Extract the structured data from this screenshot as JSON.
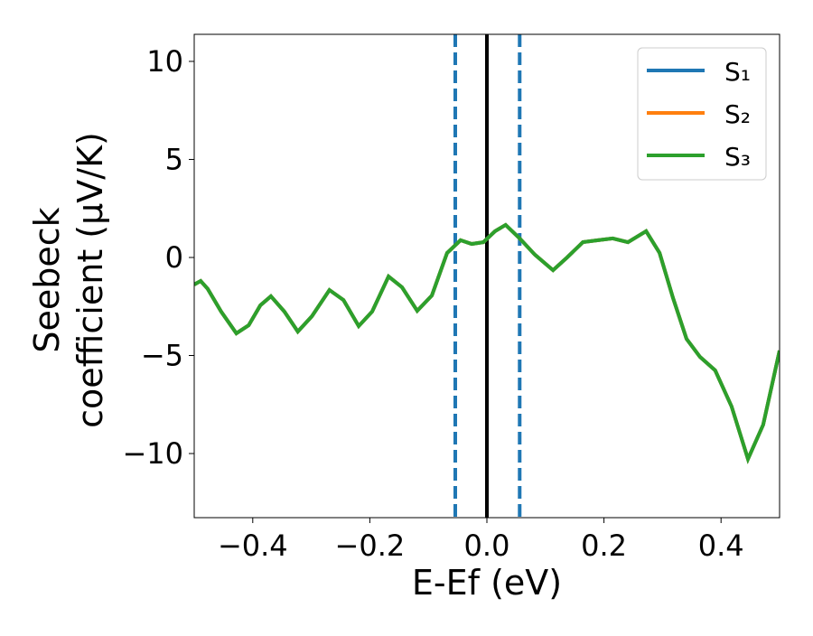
{
  "chart_data": {
    "type": "line",
    "xlabel": "E-Ef (eV)",
    "ylabel": [
      "Seebeck",
      "coefficient  (μV/K)"
    ],
    "x": [
      -0.5,
      -0.489,
      -0.477,
      -0.454,
      -0.428,
      -0.407,
      -0.387,
      -0.369,
      -0.346,
      -0.323,
      -0.299,
      -0.269,
      -0.245,
      -0.219,
      -0.196,
      -0.168,
      -0.145,
      -0.119,
      -0.094,
      -0.068,
      -0.045,
      -0.026,
      -0.006,
      0.014,
      0.032,
      0.056,
      0.082,
      0.113,
      0.137,
      0.164,
      0.19,
      0.215,
      0.241,
      0.272,
      0.295,
      0.318,
      0.341,
      0.364,
      0.39,
      0.418,
      0.446,
      0.472,
      0.5
    ],
    "series": [
      {
        "name": "S₁",
        "color": "#1f77b4",
        "values": [
          -1.38,
          -1.2,
          -1.6,
          -2.76,
          -3.87,
          -3.46,
          -2.44,
          -1.98,
          -2.76,
          -3.78,
          -3.0,
          -1.66,
          -2.17,
          -3.5,
          -2.76,
          -0.97,
          -1.52,
          -2.72,
          -1.94,
          0.23,
          0.88,
          0.69,
          0.78,
          1.34,
          1.66,
          0.97,
          0.14,
          -0.65,
          0,
          0.78,
          0.88,
          0.97,
          0.78,
          1.34,
          0.23,
          -2.07,
          -4.15,
          -5.07,
          -5.76,
          -7.6,
          -10.28,
          -8.53,
          -4.75
        ]
      },
      {
        "name": "S₂",
        "color": "#ff7f0e",
        "values": [
          -1.38,
          -1.2,
          -1.6,
          -2.76,
          -3.87,
          -3.46,
          -2.44,
          -1.98,
          -2.76,
          -3.78,
          -3.0,
          -1.66,
          -2.17,
          -3.5,
          -2.76,
          -0.97,
          -1.52,
          -2.72,
          -1.94,
          0.23,
          0.88,
          0.69,
          0.78,
          1.34,
          1.66,
          0.97,
          0.14,
          -0.65,
          0,
          0.78,
          0.88,
          0.97,
          0.78,
          1.34,
          0.23,
          -2.07,
          -4.15,
          -5.07,
          -5.76,
          -7.6,
          -10.28,
          -8.53,
          -4.75
        ]
      },
      {
        "name": "S₃",
        "color": "#2ca02c",
        "values": [
          -1.38,
          -1.2,
          -1.6,
          -2.76,
          -3.87,
          -3.46,
          -2.44,
          -1.98,
          -2.76,
          -3.78,
          -3.0,
          -1.66,
          -2.17,
          -3.5,
          -2.76,
          -0.97,
          -1.52,
          -2.72,
          -1.94,
          0.23,
          0.88,
          0.69,
          0.78,
          1.34,
          1.66,
          0.97,
          0.14,
          -0.65,
          0,
          0.78,
          0.88,
          0.97,
          0.78,
          1.34,
          0.23,
          -2.07,
          -4.15,
          -5.07,
          -5.76,
          -7.6,
          -10.28,
          -8.53,
          -4.75
        ]
      }
    ],
    "vlines": [
      {
        "x": 0,
        "color": "#000000",
        "dashed": false
      },
      {
        "x": -0.054,
        "color": "#1f77b4",
        "dashed": true
      },
      {
        "x": 0.056,
        "color": "#1f77b4",
        "dashed": true
      }
    ],
    "xlim": [
      -0.5,
      0.5
    ],
    "xticks": [
      {
        "value": -0.4,
        "label": "−0.4"
      },
      {
        "value": -0.2,
        "label": "−0.2"
      },
      {
        "value": 0,
        "label": "0.0"
      },
      0.2,
      0.4
    ],
    "ylim": [
      -13.27,
      11.38
    ],
    "yticks": [
      {
        "value": -10,
        "label": "−10"
      },
      {
        "value": -5,
        "label": "−5"
      },
      0,
      5,
      10
    ],
    "legend": "upper right"
  }
}
